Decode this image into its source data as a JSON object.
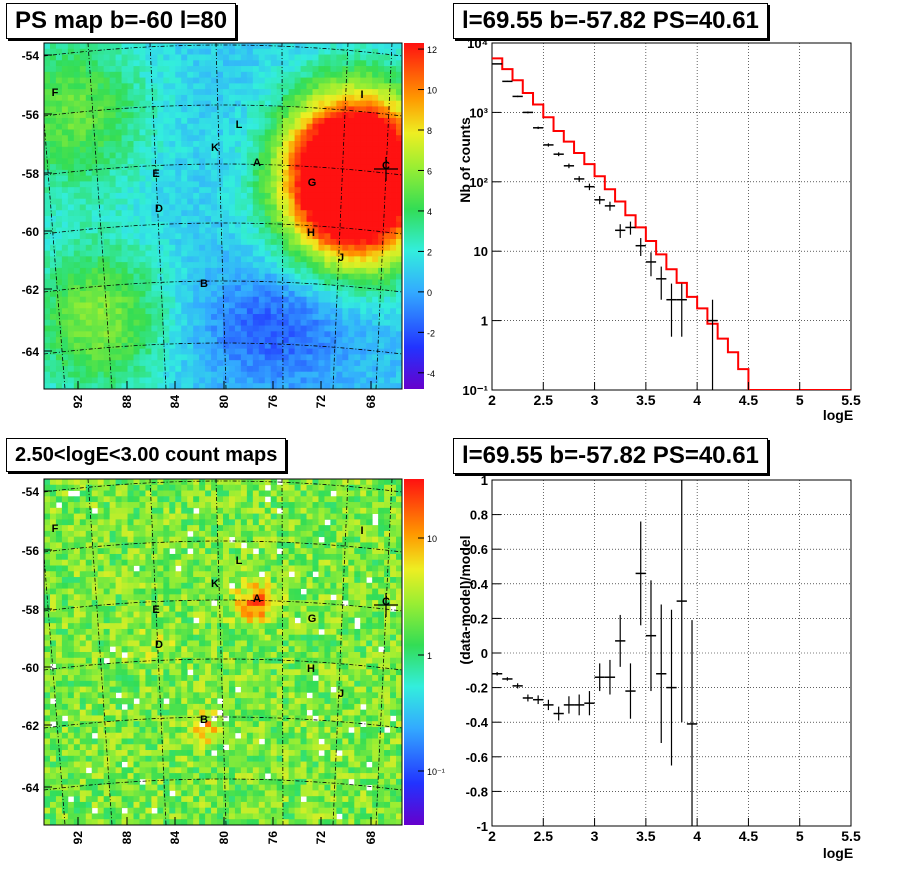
{
  "panels": {
    "ps_map": {
      "title": "PS map b=-60 l=80",
      "lat_ticks": [
        "-54",
        "-56",
        "-58",
        "-60",
        "-62",
        "-64"
      ],
      "lon_ticks": [
        "92",
        "88",
        "84",
        "80",
        "76",
        "72",
        "68"
      ],
      "colorbar_ticks": [
        "12",
        "10",
        "8",
        "6",
        "4",
        "2",
        "0",
        "-2",
        "-4"
      ]
    },
    "count_map": {
      "title": "2.50<logE<3.00 count maps",
      "lat_ticks": [
        "-54",
        "-56",
        "-58",
        "-60",
        "-62",
        "-64"
      ],
      "lon_ticks": [
        "92",
        "88",
        "84",
        "80",
        "76",
        "72",
        "68"
      ],
      "colorbar_ticks": [
        "10",
        "1",
        "10⁻¹"
      ]
    },
    "spectrum": {
      "title": "l=69.55 b=-57.82 PS=40.61"
    },
    "residual": {
      "title": "l=69.55 b=-57.82 PS=40.61"
    }
  },
  "source_labels": [
    "A",
    "B",
    "C",
    "D",
    "E",
    "F",
    "G",
    "H",
    "I",
    "J",
    "K",
    "L"
  ],
  "colors": {
    "model": "#ff0000",
    "data": "#000000"
  },
  "chart_data": [
    {
      "type": "heatmap",
      "title": "PS map b=-60 l=80",
      "xlabel": "",
      "ylabel": "",
      "x_ticks": [
        92,
        88,
        84,
        80,
        76,
        72,
        68
      ],
      "y_ticks": [
        -54,
        -56,
        -58,
        -60,
        -62,
        -64
      ],
      "zlim": [
        -4.8,
        12.3
      ],
      "colorbar_ticks": [
        12,
        10,
        8,
        6,
        4,
        2,
        0,
        -2,
        -4
      ],
      "markers": [
        "A",
        "B",
        "C",
        "D",
        "E",
        "F",
        "G",
        "H",
        "I",
        "J",
        "K",
        "L"
      ],
      "grid": true
    },
    {
      "type": "line",
      "title": "l=69.55 b=-57.82 PS=40.61",
      "xlabel": "logE",
      "ylabel": "Nb of counts",
      "xlim": [
        2,
        5.5
      ],
      "ylim": [
        0.1,
        10000
      ],
      "yscale": "log",
      "x_ticks": [
        "2",
        "2.5",
        "3",
        "3.5",
        "4",
        "4.5",
        "5",
        "5.5"
      ],
      "y_ticks": [
        "10⁻¹",
        "1",
        "10",
        "10²",
        "10³",
        "10⁴"
      ],
      "series": [
        {
          "name": "",
          "kind": "data",
          "x": [
            2.05,
            2.15,
            2.25,
            2.35,
            2.45,
            2.55,
            2.65,
            2.75,
            2.85,
            2.95,
            3.05,
            3.15,
            3.25,
            3.35,
            3.45,
            3.55,
            3.65,
            3.75,
            3.85,
            4.15
          ],
          "y": [
            5000,
            2800,
            1700,
            1000,
            600,
            340,
            250,
            170,
            110,
            85,
            55,
            45,
            20,
            22,
            12,
            7,
            4,
            2,
            2,
            1
          ]
        },
        {
          "name": "",
          "kind": "model",
          "x": [
            2.0,
            2.1,
            2.2,
            2.3,
            2.4,
            2.5,
            2.6,
            2.7,
            2.8,
            2.9,
            3.0,
            3.1,
            3.2,
            3.3,
            3.4,
            3.5,
            3.6,
            3.7,
            3.8,
            3.9,
            4.0,
            4.1,
            4.2,
            4.3,
            4.4,
            4.5,
            5.5
          ],
          "y": [
            6000,
            4200,
            2900,
            1900,
            1300,
            850,
            540,
            380,
            260,
            180,
            120,
            78,
            52,
            33,
            22,
            14,
            9,
            5.5,
            3.5,
            2.2,
            1.5,
            0.9,
            0.55,
            0.35,
            0.2,
            0.1,
            0.1
          ]
        }
      ],
      "grid": true
    },
    {
      "type": "heatmap",
      "title": "2.50<logE<3.00 count maps",
      "xlabel": "",
      "ylabel": "",
      "x_ticks": [
        92,
        88,
        84,
        80,
        76,
        72,
        68
      ],
      "y_ticks": [
        -54,
        -56,
        -58,
        -60,
        -62,
        -64
      ],
      "zscale": "log",
      "colorbar_ticks": [
        "10",
        "1",
        "10⁻¹"
      ],
      "markers": [
        "A",
        "B",
        "C",
        "D",
        "E",
        "F",
        "G",
        "H",
        "I",
        "J",
        "K",
        "L"
      ],
      "grid": true
    },
    {
      "type": "scatter",
      "title": "l=69.55 b=-57.82 PS=40.61",
      "xlabel": "logE",
      "ylabel": "(data-model)/model",
      "xlim": [
        2,
        5.5
      ],
      "ylim": [
        -1,
        1
      ],
      "x_ticks": [
        "2",
        "2.5",
        "3",
        "3.5",
        "4",
        "4.5",
        "5",
        "5.5"
      ],
      "y_ticks": [
        "-1",
        "-0.8",
        "-0.6",
        "-0.4",
        "-0.2",
        "0",
        "0.2",
        "0.4",
        "0.6",
        "0.8",
        "1"
      ],
      "series": [
        {
          "name": "",
          "x": [
            2.05,
            2.15,
            2.25,
            2.35,
            2.45,
            2.55,
            2.65,
            2.75,
            2.85,
            2.95,
            3.05,
            3.15,
            3.25,
            3.35,
            3.45,
            3.55,
            3.65,
            3.75,
            3.85,
            3.95
          ],
          "y": [
            -0.12,
            -0.15,
            -0.19,
            -0.26,
            -0.27,
            -0.3,
            -0.35,
            -0.3,
            -0.3,
            -0.29,
            -0.14,
            -0.14,
            0.07,
            -0.22,
            0.46,
            0.1,
            -0.12,
            -0.2,
            0.3,
            -0.41
          ],
          "yerr": [
            0.01,
            0.01,
            0.015,
            0.02,
            0.025,
            0.03,
            0.04,
            0.05,
            0.06,
            0.07,
            0.08,
            0.1,
            0.15,
            0.16,
            0.3,
            0.32,
            0.4,
            0.45,
            0.7,
            0.6
          ]
        }
      ],
      "grid": true
    }
  ]
}
